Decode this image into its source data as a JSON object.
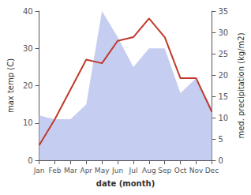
{
  "chart_data": {
    "type": "line",
    "categories": [
      "Jan",
      "Feb",
      "Mar",
      "Apr",
      "May",
      "Jun",
      "Jul",
      "Aug",
      "Sep",
      "Oct",
      "Nov",
      "Dec"
    ],
    "series": [
      {
        "type": "area",
        "color": "#c5cdf0",
        "values": [
          12,
          11,
          11,
          15,
          40,
          33,
          25,
          30,
          30,
          18,
          22,
          14
        ]
      },
      {
        "type": "line",
        "color": "#c0392b",
        "values": [
          4,
          11,
          19,
          27,
          26,
          32,
          33,
          38,
          33,
          22,
          22,
          13
        ]
      }
    ],
    "xlabel": "date (month)",
    "ylabel": "max temp (C)",
    "y2label": "med. precipitation (kg/m2)",
    "ylim": [
      0,
      40
    ],
    "yticks": [
      0,
      10,
      20,
      30,
      40
    ],
    "y2lim": [
      0,
      35
    ],
    "y2ticks": [
      0,
      5,
      10,
      15,
      20,
      25,
      30,
      35
    ],
    "grid": false
  }
}
